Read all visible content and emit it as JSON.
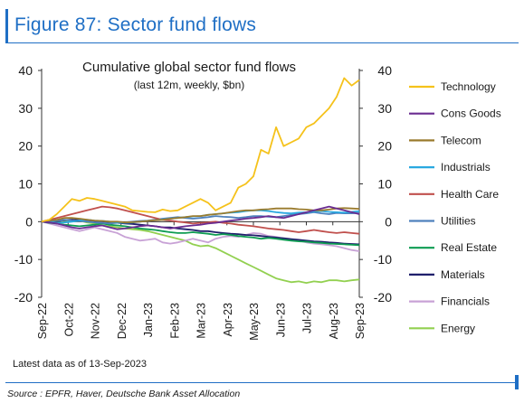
{
  "figure_title": "Figure 87: Sector fund flows",
  "footnote": "Latest data as of 13-Sep-2023",
  "source": "Source : EPFR, Haver, Deutsche Bank Asset Allocation",
  "chart_data": {
    "type": "line",
    "title": "Cumulative global sector fund flows",
    "subtitle": "(last 12m, weekly, $bn)",
    "xlabel": "",
    "ylabel": "",
    "ylim": [
      -20,
      40
    ],
    "yticks": [
      -20,
      -10,
      0,
      10,
      20,
      30,
      40
    ],
    "x_tick_labels": [
      "Sep-22",
      "Oct-22",
      "Nov-22",
      "Dec-22",
      "Jan-23",
      "Feb-23",
      "Mar-23",
      "Apr-23",
      "May-23",
      "Jun-23",
      "Jul-23",
      "Aug-23",
      "Sep-23"
    ],
    "legend_position": "right",
    "grid": false,
    "series": [
      {
        "name": "Technology",
        "color": "#f5c21b",
        "values": [
          0,
          0.5,
          2,
          4,
          6,
          5.5,
          6.3,
          6,
          5.5,
          5,
          4.5,
          4,
          3,
          2.8,
          2.6,
          2.5,
          3.2,
          2.8,
          3,
          4,
          5,
          6,
          5,
          3,
          4,
          5,
          9,
          10,
          12,
          19,
          18,
          25,
          20,
          21,
          22,
          25,
          26,
          28,
          30,
          33,
          38,
          36,
          37.5
        ]
      },
      {
        "name": "Cons Goods",
        "color": "#6a2c91",
        "values": [
          0,
          -0.2,
          -0.5,
          -1,
          -1.5,
          -1.8,
          -1.5,
          -1.2,
          -1,
          -1.5,
          -2,
          -1.8,
          -1.5,
          -1.2,
          -1,
          -1.2,
          -1.5,
          -1.8,
          -1.5,
          -1.2,
          -1,
          -0.8,
          -0.5,
          -0.3,
          0,
          0.3,
          0.5,
          0.8,
          1,
          1.2,
          1.5,
          1.2,
          1,
          1.5,
          2,
          2.5,
          3,
          3.5,
          4,
          3.5,
          3,
          2.5,
          2
        ]
      },
      {
        "name": "Telecom",
        "color": "#9a7b2e",
        "values": [
          0,
          0.3,
          0.5,
          1,
          1,
          0.8,
          0.5,
          0.3,
          0.2,
          0,
          0,
          -0.2,
          -0.1,
          0,
          0.2,
          0.4,
          0.5,
          0.8,
          1,
          1.2,
          1.5,
          1.5,
          1.8,
          2,
          2.2,
          2.5,
          2.8,
          3,
          3,
          3.2,
          3.3,
          3.5,
          3.5,
          3.5,
          3.3,
          3.2,
          3,
          3,
          3.2,
          3.5,
          3.6,
          3.5,
          3.4
        ]
      },
      {
        "name": "Industrials",
        "color": "#29a8e0",
        "values": [
          0,
          0,
          -0.3,
          -0.2,
          0,
          0.3,
          0.5,
          0.3,
          0.2,
          0,
          -0.2,
          -0.3,
          -0.2,
          0,
          0.2,
          0.4,
          0.6,
          0.8,
          1,
          1.2,
          1.4,
          1.5,
          1.8,
          2,
          2.2,
          2.4,
          2.5,
          2.8,
          3,
          3,
          2.8,
          2.5,
          2.3,
          2.2,
          2.4,
          2.5,
          2.7,
          2.8,
          2.6,
          2.5,
          2.4,
          2.6,
          2.8
        ]
      },
      {
        "name": "Health Care",
        "color": "#c0504d",
        "values": [
          0,
          0.5,
          1,
          1.5,
          2,
          2.5,
          3,
          3.5,
          4,
          3.8,
          3.5,
          3,
          2.5,
          2,
          1.5,
          1,
          0.5,
          0.3,
          0,
          -0.2,
          -0.5,
          -0.3,
          -0.2,
          0,
          -0.3,
          -0.5,
          -0.8,
          -1,
          -1.2,
          -1.5,
          -1.8,
          -2,
          -2.2,
          -2.5,
          -2.8,
          -2.5,
          -2.2,
          -2.5,
          -2.8,
          -3,
          -2.8,
          -3,
          -3.2
        ]
      },
      {
        "name": "Utilities",
        "color": "#4f81bd",
        "values": [
          0,
          0.2,
          0.3,
          0.5,
          0.3,
          0.2,
          0,
          -0.2,
          -0.3,
          -0.5,
          -0.3,
          -0.2,
          0,
          0.2,
          0.3,
          0.5,
          0.8,
          1,
          1.2,
          1,
          0.8,
          1,
          1.2,
          1.5,
          1.3,
          1.2,
          1,
          1.2,
          1.5,
          1.5,
          1.3,
          1.2,
          1.5,
          1.8,
          2,
          2.2,
          2.5,
          2.2,
          2,
          2.3,
          2.2,
          2.2,
          2.3
        ]
      },
      {
        "name": "Real Estate",
        "color": "#0e9c52",
        "values": [
          0,
          -0.3,
          -0.5,
          -0.8,
          -1,
          -1.2,
          -1,
          -0.8,
          -0.5,
          -0.8,
          -1,
          -1.2,
          -1.5,
          -1.8,
          -2,
          -2.2,
          -2.5,
          -2.8,
          -3,
          -3,
          -2.8,
          -3,
          -3.2,
          -3.5,
          -3.3,
          -3.5,
          -3.8,
          -4,
          -4.2,
          -4.5,
          -4.3,
          -4.5,
          -4.8,
          -5,
          -5.2,
          -5.3,
          -5.5,
          -5.6,
          -5.8,
          -5.9,
          -6,
          -6.1,
          -6.2
        ]
      },
      {
        "name": "Materials",
        "color": "#1f1f6b",
        "values": [
          0,
          0.2,
          0.3,
          0.4,
          0.5,
          0.4,
          0.3,
          0.2,
          0,
          -0.2,
          -0.3,
          -0.5,
          -0.6,
          -0.8,
          -1,
          -1.2,
          -1.5,
          -1.5,
          -1.8,
          -2,
          -2.2,
          -2.5,
          -2.5,
          -2.8,
          -3,
          -3.2,
          -3.3,
          -3.5,
          -3.6,
          -3.8,
          -4,
          -4.2,
          -4.4,
          -4.6,
          -4.8,
          -5,
          -5.2,
          -5.3,
          -5.5,
          -5.6,
          -5.8,
          -5.9,
          -6
        ]
      },
      {
        "name": "Financials",
        "color": "#c8a2d6",
        "values": [
          0,
          -0.5,
          -1,
          -1.5,
          -2,
          -2.5,
          -2,
          -1.5,
          -2,
          -2.5,
          -3,
          -4,
          -4.5,
          -5,
          -4.8,
          -4.5,
          -5.5,
          -5.8,
          -5.5,
          -5,
          -4.5,
          -5,
          -5.5,
          -4.5,
          -4,
          -3.8,
          -4,
          -3.5,
          -3,
          -3.2,
          -3.8,
          -4,
          -4.5,
          -4.8,
          -5,
          -5.5,
          -5.8,
          -6,
          -6.2,
          -6.5,
          -7,
          -7.5,
          -7.8
        ]
      },
      {
        "name": "Energy",
        "color": "#92d050",
        "values": [
          0,
          -0.2,
          -0.5,
          0,
          0.5,
          0.3,
          -0.2,
          -0.5,
          -1,
          -1.2,
          -1.5,
          -1.8,
          -2,
          -2.2,
          -2.5,
          -3,
          -3.5,
          -4,
          -4.5,
          -5,
          -6,
          -6.5,
          -6.3,
          -7,
          -8,
          -9,
          -10,
          -11,
          -12,
          -13,
          -14,
          -15,
          -15.5,
          -16,
          -15.8,
          -16.2,
          -15.8,
          -16,
          -15.5,
          -15.5,
          -15.8,
          -15.5,
          -15.3
        ]
      }
    ]
  }
}
